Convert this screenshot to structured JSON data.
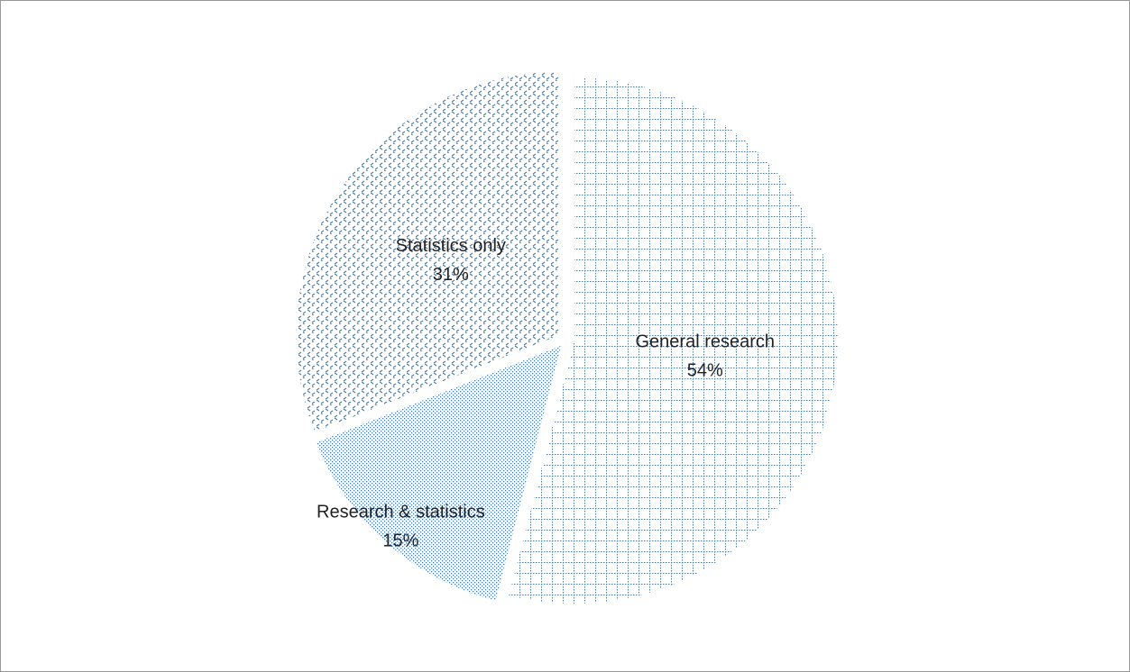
{
  "chart_data": {
    "type": "pie",
    "categories": [
      "General research",
      "Research & statistics",
      "Statistics only"
    ],
    "values": [
      54,
      15,
      31
    ],
    "value_labels": [
      "54%",
      "15%",
      "31%"
    ],
    "color": "#4a7aa8"
  }
}
